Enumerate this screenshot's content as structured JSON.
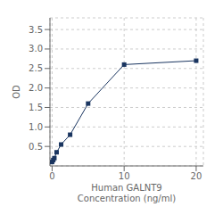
{
  "chart_data": {
    "type": "line",
    "x": [
      0,
      0.156,
      0.313,
      0.625,
      1.25,
      2.5,
      5,
      10,
      20
    ],
    "values": [
      0.1,
      0.15,
      0.2,
      0.35,
      0.55,
      0.8,
      1.6,
      2.6,
      2.7
    ],
    "color": "#1a3560",
    "marker": "square",
    "xlabel": "Human GALNT9\nConcentration (ng/ml)",
    "ylabel": "OD",
    "xlim": [
      -0.3,
      21
    ],
    "ylim": [
      0,
      3.8
    ],
    "xticks": [
      0,
      10,
      20
    ],
    "yticks": [
      0.5,
      {
        "value": 1.0,
        "label": "1.0"
      },
      1.5,
      {
        "value": 2.0,
        "label": "2.0"
      },
      2.5,
      {
        "value": 3.0,
        "label": "3.0"
      },
      3.5
    ],
    "grid": true
  }
}
